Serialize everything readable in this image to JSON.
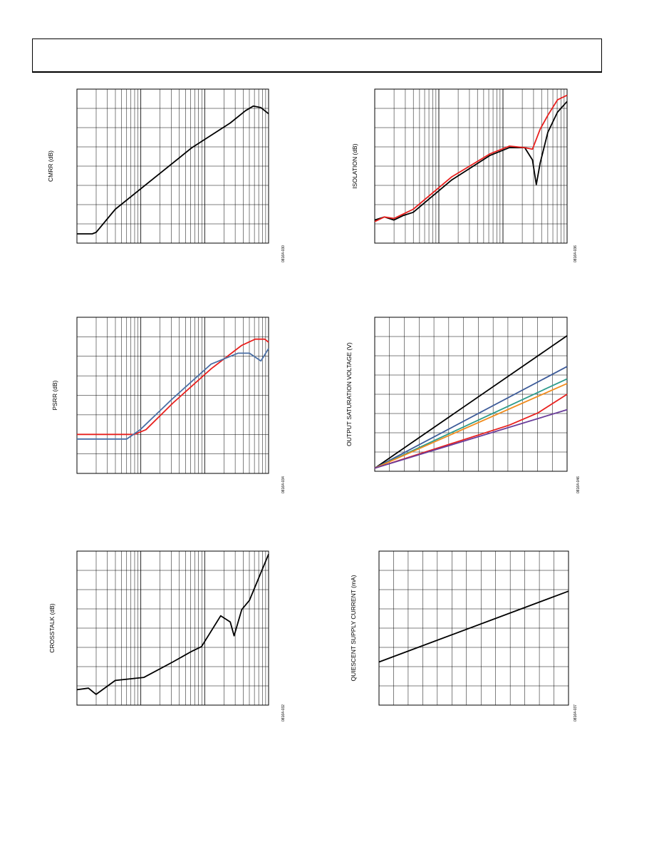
{
  "chart_data": [
    {
      "type": "line",
      "ylabel": "CMRR (dB)",
      "figure_code": "08164-030",
      "log_x": true,
      "grid": true,
      "series": [
        {
          "color": "#000000",
          "x": [
            0,
            0.08,
            0.1,
            0.2,
            0.4,
            0.6,
            0.8,
            0.88,
            0.92,
            0.96,
            1.0
          ],
          "y": [
            0.06,
            0.06,
            0.07,
            0.22,
            0.42,
            0.62,
            0.78,
            0.86,
            0.89,
            0.88,
            0.84
          ]
        }
      ]
    },
    {
      "type": "line",
      "ylabel": "ISOLATION (dB)",
      "figure_code": "08164-036",
      "log_x": true,
      "grid": true,
      "series": [
        {
          "color": "#000000",
          "x": [
            0,
            0.05,
            0.1,
            0.15,
            0.2,
            0.4,
            0.6,
            0.7,
            0.78,
            0.82,
            0.84,
            0.86,
            0.9,
            0.95,
            1.0
          ],
          "y": [
            0.15,
            0.17,
            0.15,
            0.18,
            0.2,
            0.41,
            0.57,
            0.62,
            0.62,
            0.54,
            0.38,
            0.52,
            0.72,
            0.85,
            0.92
          ]
        },
        {
          "color": "#e8201e",
          "x": [
            0,
            0.05,
            0.1,
            0.15,
            0.2,
            0.4,
            0.6,
            0.7,
            0.78,
            0.82,
            0.86,
            0.9,
            0.95,
            1.0
          ],
          "y": [
            0.14,
            0.17,
            0.16,
            0.19,
            0.22,
            0.43,
            0.58,
            0.63,
            0.62,
            0.61,
            0.74,
            0.83,
            0.93,
            0.96
          ]
        }
      ]
    },
    {
      "type": "line",
      "ylabel": "PSRR (dB)",
      "figure_code": "08164-034",
      "log_x": true,
      "grid": true,
      "series": [
        {
          "color": "#e8201e",
          "x": [
            0,
            0.3,
            0.36,
            0.5,
            0.7,
            0.86,
            0.93,
            0.98,
            1.0
          ],
          "y": [
            0.25,
            0.25,
            0.28,
            0.45,
            0.67,
            0.82,
            0.86,
            0.86,
            0.84
          ]
        },
        {
          "color": "#4a6fa5",
          "x": [
            0,
            0.26,
            0.33,
            0.5,
            0.7,
            0.84,
            0.9,
            0.96,
            1.0
          ],
          "y": [
            0.22,
            0.22,
            0.28,
            0.48,
            0.7,
            0.77,
            0.77,
            0.72,
            0.8
          ]
        }
      ]
    },
    {
      "type": "line",
      "ylabel": "OUTPUT SATURATION VOLTAGE (V)",
      "figure_code": "08164-046",
      "log_x": false,
      "grid": true,
      "series": [
        {
          "color": "#000000",
          "x": [
            0,
            1
          ],
          "y": [
            0.02,
            0.88
          ]
        },
        {
          "color": "#3c5a98",
          "x": [
            0,
            1
          ],
          "y": [
            0.02,
            0.68
          ]
        },
        {
          "color": "#2e9c8c",
          "x": [
            0,
            1
          ],
          "y": [
            0.02,
            0.6
          ]
        },
        {
          "color": "#f08c1e",
          "x": [
            0,
            1
          ],
          "y": [
            0.02,
            0.57
          ]
        },
        {
          "color": "#e8201e",
          "x": [
            0,
            0.7,
            0.85,
            1.0
          ],
          "y": [
            0.02,
            0.3,
            0.38,
            0.5
          ]
        },
        {
          "color": "#6a3d9a",
          "x": [
            0,
            1
          ],
          "y": [
            0.02,
            0.4
          ]
        }
      ]
    },
    {
      "type": "line",
      "ylabel": "CROSSTALK (dB)",
      "figure_code": "08164-032",
      "log_x": true,
      "grid": true,
      "series": [
        {
          "color": "#000000",
          "x": [
            0,
            0.06,
            0.1,
            0.2,
            0.35,
            0.5,
            0.6,
            0.65,
            0.75,
            0.8,
            0.82,
            0.86,
            0.9,
            1.0
          ],
          "y": [
            0.1,
            0.11,
            0.07,
            0.16,
            0.18,
            0.28,
            0.35,
            0.38,
            0.58,
            0.54,
            0.45,
            0.62,
            0.68,
            0.98
          ]
        }
      ]
    },
    {
      "type": "line",
      "ylabel": "QUIESCENT SUPPLY CURRENT (mA)",
      "figure_code": "08164-037",
      "log_x": false,
      "grid": true,
      "series": [
        {
          "color": "#000000",
          "x": [
            0,
            1
          ],
          "y": [
            0.28,
            0.74
          ]
        }
      ]
    }
  ]
}
